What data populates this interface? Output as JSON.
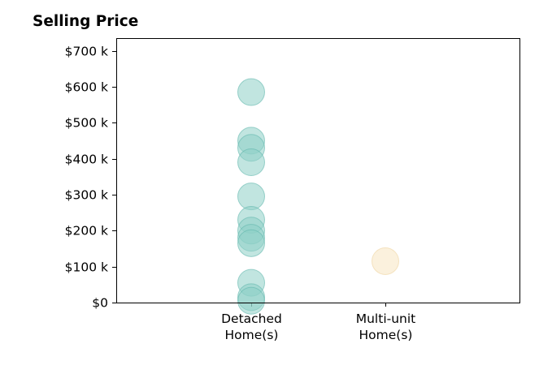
{
  "chart_data": {
    "type": "scatter",
    "title": "Selling Price",
    "xlabel": "",
    "ylabel": "",
    "categories": [
      "Detached Home(s)",
      "Multi-unit Home(s)"
    ],
    "category_lines": [
      [
        "Detached",
        "Home(s)"
      ],
      [
        "Multi-unit",
        "Home(s)"
      ]
    ],
    "ylim": [
      0,
      735
    ],
    "y_ticks": [
      0,
      100,
      200,
      300,
      400,
      500,
      600,
      700
    ],
    "y_tick_labels": [
      "$0",
      "$100 k",
      "$200 k",
      "$300 k",
      "$400 k",
      "$500 k",
      "$600 k",
      "$700 k"
    ],
    "grid": false,
    "series": [
      {
        "category": "Detached Home(s)",
        "values": [
          585,
          450,
          430,
          390,
          295,
          230,
          200,
          180,
          165,
          55,
          15,
          5
        ],
        "color": "#8ecfc7",
        "stroke": "#63b8ad"
      },
      {
        "category": "Multi-unit Home(s)",
        "values": [
          115
        ],
        "color": "#f8e6c1",
        "stroke": "#efd3a0"
      }
    ],
    "marker": "circle",
    "alpha": 0.55
  }
}
